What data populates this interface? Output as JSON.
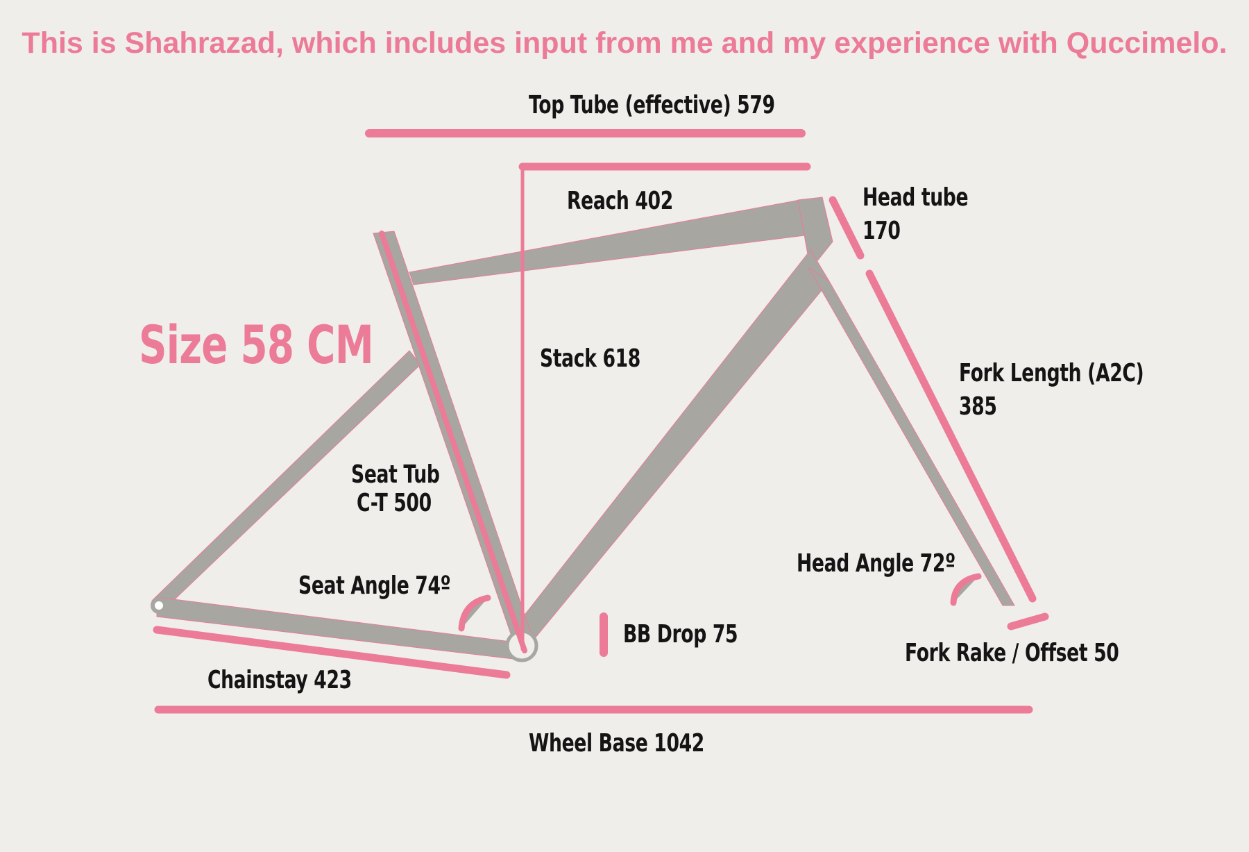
{
  "header": {
    "text": "This is Shahrazad, which includes input from me and my experience with Quccimelo."
  },
  "size_label": "Size 58 CM",
  "colors": {
    "accent": "#ec7b97",
    "frame": "#a7a6a1",
    "text": "#141414",
    "background": "#efeeeb"
  },
  "labels": {
    "top_tube": "Top Tube (effective) 579",
    "reach": "Reach 402",
    "head_tube_line1": "Head tube",
    "head_tube_line2": "170",
    "stack": "Stack 618",
    "fork_length_line1": "Fork Length (A2C)",
    "fork_length_line2": "385",
    "seat_tube_line1": "Seat Tub",
    "seat_tube_line2": "C-T 500",
    "seat_angle": "Seat Angle 74º",
    "head_angle": "Head Angle 72º",
    "bb_drop": "BB Drop 75",
    "fork_rake": "Fork Rake / Offset 50",
    "chainstay": "Chainstay 423",
    "wheel_base": "Wheel Base 1042"
  }
}
